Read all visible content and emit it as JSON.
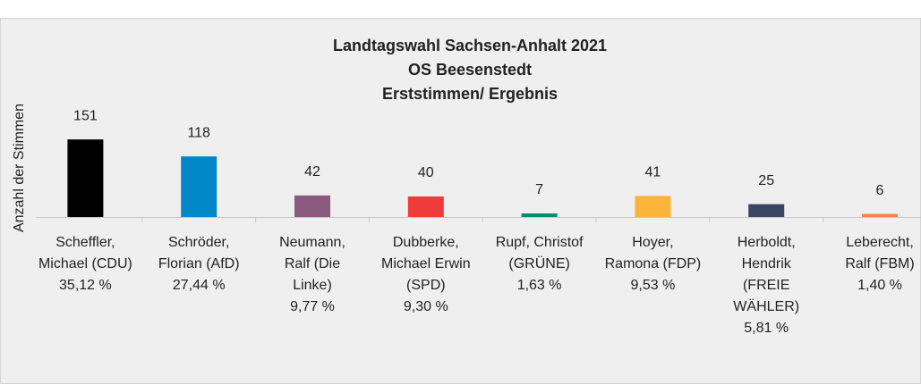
{
  "chart_data": {
    "type": "bar",
    "title": [
      "Landtagswahl Sachsen-Anhalt 2021",
      "OS Beesenstedt",
      "Erststimmen/ Ergebnis"
    ],
    "y_label": "Anzahl der Stimmen",
    "categories": [
      [
        "Scheffler,",
        "Michael (CDU)",
        "35,12 %"
      ],
      [
        "Schröder,",
        "Florian (AfD)",
        "27,44 %"
      ],
      [
        "Neumann,",
        "Ralf (Die",
        "Linke)",
        "9,77 %"
      ],
      [
        "Dubberke,",
        "Michael Erwin",
        "(SPD)",
        "9,30 %"
      ],
      [
        "Rupf, Christof",
        "(GRÜNE)",
        "1,63 %"
      ],
      [
        "Hoyer,",
        "Ramona (FDP)",
        "9,53 %"
      ],
      [
        "Herboldt,",
        "Hendrik",
        "(FREIE",
        "WÄHLER)",
        "5,81 %"
      ],
      [
        "Leberecht,",
        "Ralf (FBM)",
        "1,40 %"
      ]
    ],
    "values": [
      151,
      118,
      42,
      40,
      7,
      41,
      25,
      6
    ],
    "colors": [
      "#000000",
      "#0087c8",
      "#8a5a7e",
      "#ef3b3b",
      "#0b8a6d",
      "#fcb43a",
      "#3b4564",
      "#ef8549"
    ],
    "ylim": [
      0,
      160
    ]
  }
}
